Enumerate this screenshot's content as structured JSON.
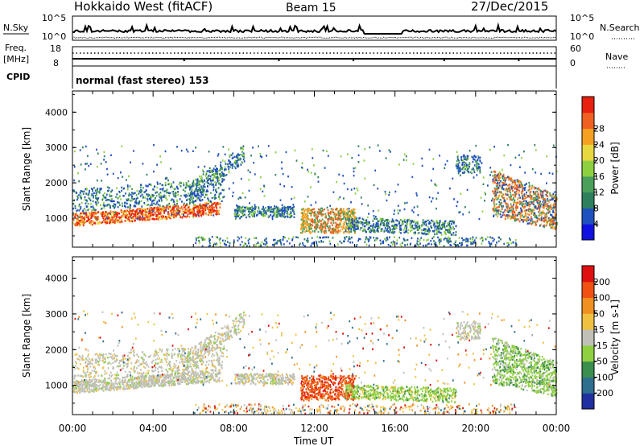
{
  "header": {
    "title": "Hokkaido West (fitACF)",
    "beam": "Beam 15",
    "date": "27/Dec/2015"
  },
  "top_panel": {
    "left_label": "N.Sky",
    "right_label": "N.Search",
    "left_ticks": [
      "10^5",
      "10^0"
    ],
    "right_ticks": [
      "10^5",
      "10^0"
    ]
  },
  "freq_panel": {
    "label_line1": "Freq.",
    "label_line2": "[MHz]",
    "left_ticks": [
      "18",
      "8"
    ],
    "right_ticks": [
      "60",
      "0"
    ],
    "right_label": "Nave"
  },
  "cpid": {
    "label": "CPID",
    "value": "normal (fast stereo) 153"
  },
  "chart_data": [
    {
      "type": "heatmap",
      "name": "power",
      "ylabel": "Slant Range [km]",
      "xlabel": "Time UT",
      "x_ticks": [
        "00:00",
        "04:00",
        "08:00",
        "12:00",
        "16:00",
        "20:00",
        "00:00"
      ],
      "xlim_hours": [
        0,
        24
      ],
      "ylim_km": [
        180,
        4600
      ],
      "y_ticks": [
        1000,
        2000,
        3000,
        4000
      ],
      "colorbar": {
        "label": "Power [dB]",
        "ticks": [
          "4",
          "8",
          "12",
          "16",
          "20",
          "24",
          "28"
        ],
        "colors": [
          "#1010e0",
          "#2050c0",
          "#2e7f5e",
          "#4aa05a",
          "#8cd040",
          "#e8d840",
          "#f5a020",
          "#f06020",
          "#e82010"
        ]
      }
    },
    {
      "type": "heatmap",
      "name": "velocity",
      "ylabel": "Slant Range [km]",
      "xlabel": "Time UT",
      "x_ticks": [
        "00:00",
        "04:00",
        "08:00",
        "12:00",
        "16:00",
        "20:00",
        "00:00"
      ],
      "xlim_hours": [
        0,
        24
      ],
      "ylim_km": [
        180,
        4600
      ],
      "y_ticks": [
        1000,
        2000,
        3000,
        4000
      ],
      "colorbar": {
        "label": "Velocity [m s-1]",
        "ticks": [
          "200",
          "100",
          "50",
          "15",
          "-15",
          "-50",
          "-100",
          "-200"
        ],
        "colors": [
          "#2030a0",
          "#2e6e8e",
          "#3a8e4e",
          "#8ed040",
          "#c0c0b8",
          "#f0c040",
          "#f09020",
          "#f05010",
          "#e01010"
        ]
      }
    }
  ],
  "colors": {
    "power_scatter_low": "#2050c0",
    "ground_scatter": "#c0c0b8"
  }
}
